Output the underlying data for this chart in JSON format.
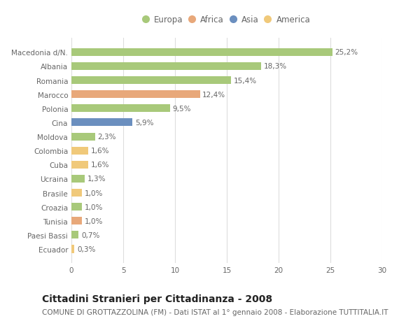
{
  "categories": [
    "Ecuador",
    "Paesi Bassi",
    "Tunisia",
    "Croazia",
    "Brasile",
    "Ucraina",
    "Cuba",
    "Colombia",
    "Moldova",
    "Cina",
    "Polonia",
    "Marocco",
    "Romania",
    "Albania",
    "Macedonia d/N."
  ],
  "values": [
    0.3,
    0.7,
    1.0,
    1.0,
    1.0,
    1.3,
    1.6,
    1.6,
    2.3,
    5.9,
    9.5,
    12.4,
    15.4,
    18.3,
    25.2
  ],
  "colors": [
    "#f0c97a",
    "#a8c97a",
    "#e8a87a",
    "#a8c97a",
    "#f0c97a",
    "#a8c97a",
    "#f0c97a",
    "#f0c97a",
    "#a8c97a",
    "#6b8fbf",
    "#a8c97a",
    "#e8a87a",
    "#a8c97a",
    "#a8c97a",
    "#a8c97a"
  ],
  "labels": [
    "0,3%",
    "0,7%",
    "1,0%",
    "1,0%",
    "1,0%",
    "1,3%",
    "1,6%",
    "1,6%",
    "2,3%",
    "5,9%",
    "9,5%",
    "12,4%",
    "15,4%",
    "18,3%",
    "25,2%"
  ],
  "legend_labels": [
    "Europa",
    "Africa",
    "Asia",
    "America"
  ],
  "legend_colors": [
    "#a8c97a",
    "#e8a87a",
    "#6b8fbf",
    "#f0c97a"
  ],
  "title": "Cittadini Stranieri per Cittadinanza - 2008",
  "subtitle": "COMUNE DI GROTTAZZOLINA (FM) - Dati ISTAT al 1° gennaio 2008 - Elaborazione TUTTITALIA.IT",
  "xlim": [
    0,
    30
  ],
  "xticks": [
    0,
    5,
    10,
    15,
    20,
    25,
    30
  ],
  "background_color": "#ffffff",
  "grid_color": "#dddddd",
  "bar_height": 0.55,
  "title_fontsize": 10,
  "subtitle_fontsize": 7.5,
  "label_fontsize": 7.5,
  "tick_fontsize": 7.5,
  "legend_fontsize": 8.5
}
